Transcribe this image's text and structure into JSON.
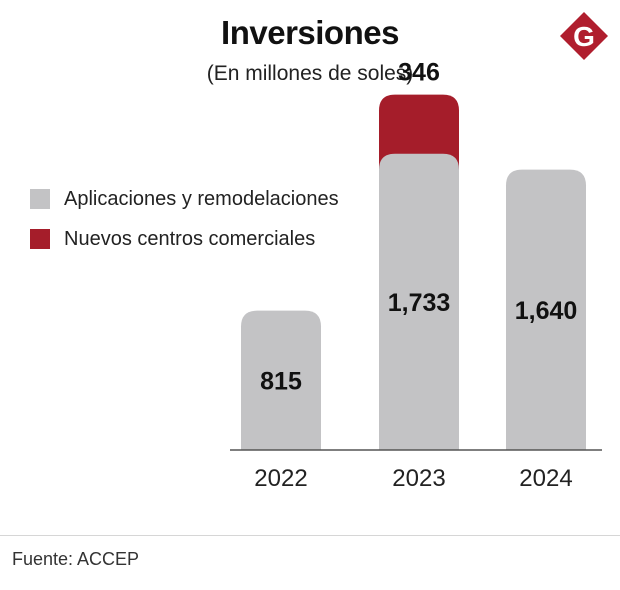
{
  "header": {
    "title": "Inversiones",
    "subtitle": "(En millones de soles)"
  },
  "logo": {
    "letter": "G",
    "icon": "brand-g-logo",
    "color": "#b01e2e"
  },
  "colors": {
    "gray": "#c3c3c5",
    "red": "#a51d2a",
    "baseline": "#555555"
  },
  "legend": {
    "items": [
      {
        "label": "Aplicaciones y remodelaciones",
        "color": "#c3c3c5"
      },
      {
        "label": "Nuevos centros comerciales",
        "color": "#a51d2a"
      }
    ]
  },
  "chart_data": {
    "type": "bar",
    "stacked": true,
    "title": "Inversiones",
    "subtitle": "(En millones de soles)",
    "categories": [
      "2022",
      "2023",
      "2024"
    ],
    "series": [
      {
        "name": "Aplicaciones y remodelaciones",
        "values": [
          815,
          1733,
          1640
        ],
        "labels": [
          "815",
          "1,733",
          "1,640"
        ]
      },
      {
        "name": "Nuevos centros comerciales",
        "values": [
          0,
          346,
          0
        ],
        "labels": [
          "",
          "346",
          ""
        ]
      }
    ],
    "xlabel": "",
    "ylabel": "",
    "ylim": [
      0,
      2100
    ],
    "grid": false,
    "legend_position": "left"
  },
  "footer": {
    "source": "Fuente: ACCEP"
  }
}
